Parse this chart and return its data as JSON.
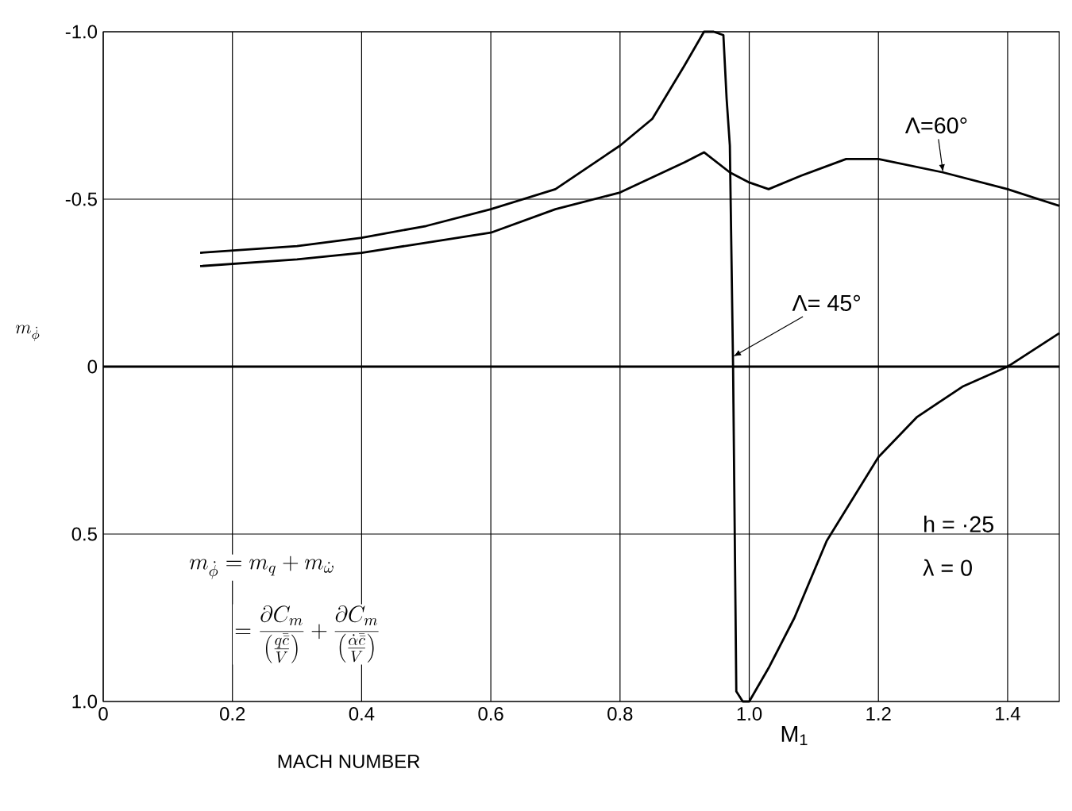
{
  "chart_data": {
    "type": "line",
    "xlabel": "MACH NUMBER",
    "ylabel": "m_{\\dot{\\phi}}",
    "xlim": [
      0,
      1.48
    ],
    "ylim": [
      1,
      -1
    ],
    "xticks": [
      0,
      0.2,
      0.4,
      0.6,
      0.8,
      {
        "value": 1,
        "label": "1.0"
      },
      1.2,
      1.4
    ],
    "yticks": [
      {
        "value": -1,
        "label": "-1.0"
      },
      -0.5,
      0,
      0.5,
      {
        "value": 1,
        "label": "1.0"
      }
    ],
    "grid": true,
    "legend": false,
    "marker": "none",
    "line_style": "solid",
    "ref_lines": [
      {
        "axis": "y",
        "value": 0,
        "color": "#000000"
      }
    ],
    "series": [
      {
        "color": "#000000",
        "x": [
          0.15,
          0.3,
          0.4,
          0.5,
          0.6,
          0.7,
          0.8,
          0.85,
          0.9,
          0.93,
          0.945,
          0.96,
          0.965,
          0.97,
          0.975,
          0.98,
          0.99,
          1.0,
          1.03,
          1.07,
          1.12,
          1.2,
          1.26,
          1.33,
          1.4,
          1.48
        ],
        "values": [
          -0.34,
          -0.36,
          -0.385,
          -0.42,
          -0.47,
          -0.53,
          -0.66,
          -0.74,
          -0.9,
          -1.0,
          -1.0,
          -0.99,
          -0.8,
          -0.66,
          0.0,
          0.97,
          1.0,
          1.0,
          0.9,
          0.75,
          0.52,
          0.27,
          0.15,
          0.06,
          0.0,
          -0.1
        ]
      },
      {
        "color": "#000000",
        "x": [
          0.15,
          0.3,
          0.4,
          0.5,
          0.6,
          0.7,
          0.8,
          0.9,
          0.93,
          0.97,
          1.0,
          1.03,
          1.08,
          1.15,
          1.2,
          1.3,
          1.4,
          1.48
        ],
        "values": [
          -0.3,
          -0.32,
          -0.34,
          -0.37,
          -0.4,
          -0.47,
          -0.52,
          -0.61,
          -0.64,
          -0.58,
          -0.55,
          -0.53,
          -0.57,
          -0.62,
          -0.62,
          -0.58,
          -0.53,
          -0.48
        ]
      }
    ],
    "annotations": [
      {
        "text": "Λ=60°",
        "x": 1.3,
        "y": -0.58
      },
      {
        "text": "Λ= 45°",
        "x": 0.975,
        "y": -0.03
      },
      "h = ·25",
      "λ = 0",
      "M$_{1}$",
      "m_{\\dot{\\phi}} = m_{q} + m_{\\dot{\\omega}}",
      "= \\frac{\\partial C_{m}}{\\left(\\frac{q\\bar{\\bar{c}}}{V}\\right)} + \\frac{\\partial C_{m}}{\\left(\\frac{\\dot{\\alpha}\\bar{\\bar{c}}}{V}\\right)}"
    ]
  }
}
